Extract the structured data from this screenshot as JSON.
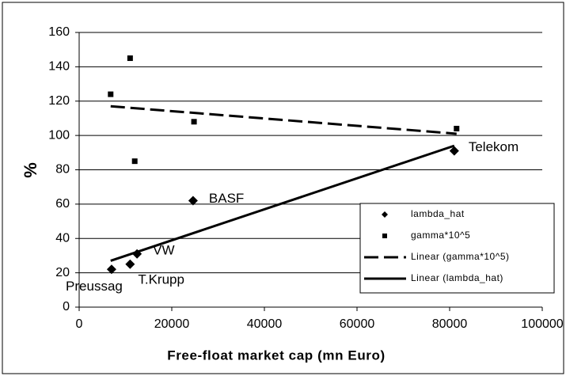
{
  "chart_data": {
    "type": "scatter",
    "xlabel": "Free-float market cap (mn Euro)",
    "ylabel": "%",
    "xlim": [
      0,
      100000
    ],
    "xticks": [
      0,
      20000,
      40000,
      60000,
      80000,
      100000
    ],
    "ylim": [
      0,
      160
    ],
    "yticks": [
      0,
      20,
      40,
      60,
      80,
      100,
      120,
      140,
      160
    ],
    "grid": true,
    "legend": "lower right",
    "series": [
      {
        "name": "lambda_hat",
        "color": "#000000",
        "marker": "diamond",
        "x": [
          7000,
          11000,
          12500,
          24600,
          81000
        ],
        "values": [
          22,
          25,
          31,
          62,
          91
        ],
        "point_labels": [
          "Preussag",
          "T.Krupp",
          "VW",
          "BASF",
          "Telekom"
        ]
      },
      {
        "name": "gamma*10^5",
        "color": "#000000",
        "marker": "square",
        "x": [
          6800,
          11000,
          12000,
          24800,
          81500
        ],
        "values": [
          124,
          145,
          85,
          108,
          104
        ]
      },
      {
        "name": "Linear (gamma*10^5)",
        "color": "#000000",
        "line": "dashed",
        "x": [
          6800,
          81500
        ],
        "values": [
          117,
          101
        ]
      },
      {
        "name": "Linear (lambda_hat)",
        "color": "#000000",
        "line": "solid",
        "x": [
          6800,
          81000
        ],
        "values": [
          27,
          94
        ]
      }
    ]
  }
}
